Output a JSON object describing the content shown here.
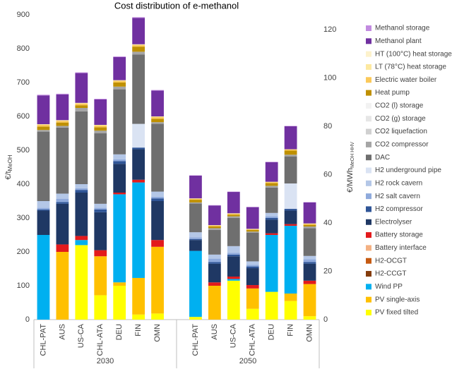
{
  "chart_data": {
    "type": "bar",
    "stacked": true,
    "title": "Cost distribution of e-methanol",
    "y_label": "€/t",
    "y_label_sub": "MeOH",
    "y2_label": "€/MWh",
    "y2_label_sub": "MeOH HHV",
    "groups": [
      "2030",
      "2050"
    ],
    "categories": [
      "CHL-PAT",
      "AUS",
      "US-CA",
      "CHL-ATA",
      "DEU",
      "FIN",
      "OMN",
      null,
      "CHL-PAT",
      "AUS",
      "US-CA",
      "CHL-ATA",
      "DEU",
      "FIN",
      "OMN"
    ],
    "ylim": [
      0,
      900
    ],
    "yticks": [
      0,
      100,
      200,
      300,
      400,
      500,
      600,
      700,
      800,
      900
    ],
    "y2lim": [
      0,
      126.1
    ],
    "y2ticks": [
      0,
      20,
      40,
      60,
      80,
      100,
      120
    ],
    "series": [
      {
        "name": "PV fixed tilted",
        "color": "#ffff00",
        "values": [
          0,
          0,
          220,
          72,
          100,
          15,
          18,
          null,
          8,
          0,
          115,
          32,
          82,
          55,
          10
        ]
      },
      {
        "name": "PV single-axis",
        "color": "#ffc000",
        "values": [
          0,
          200,
          0,
          115,
          10,
          108,
          197,
          null,
          0,
          100,
          0,
          60,
          0,
          22,
          95
        ]
      },
      {
        "name": "Wind PP",
        "color": "#00b0f0",
        "values": [
          250,
          0,
          15,
          0,
          260,
          282,
          0,
          null,
          195,
          0,
          5,
          0,
          168,
          200,
          0
        ]
      },
      {
        "name": "H2-CCGT",
        "color": "#843c0c",
        "values": [
          0,
          0,
          0,
          0,
          0,
          0,
          0,
          null,
          0,
          0,
          0,
          0,
          0,
          0,
          0
        ]
      },
      {
        "name": "H2-OCGT",
        "color": "#c55a11",
        "values": [
          0,
          0,
          0,
          0,
          0,
          0,
          0,
          null,
          0,
          0,
          0,
          0,
          0,
          0,
          0
        ]
      },
      {
        "name": "Battery interface",
        "color": "#f4b183",
        "values": [
          0,
          0,
          0,
          0,
          0,
          0,
          0,
          null,
          0,
          0,
          0,
          0,
          0,
          0,
          0
        ]
      },
      {
        "name": "Battery storage",
        "color": "#e31a1c",
        "values": [
          0,
          22,
          12,
          18,
          5,
          8,
          20,
          null,
          0,
          10,
          7,
          10,
          5,
          5,
          10
        ]
      },
      {
        "name": "Electrolyser",
        "color": "#1f3864",
        "values": [
          72,
          120,
          128,
          112,
          85,
          90,
          115,
          null,
          32,
          55,
          60,
          50,
          40,
          40,
          50
        ]
      },
      {
        "name": "H2 compressor",
        "color": "#2f5597",
        "values": [
          3,
          5,
          8,
          8,
          8,
          5,
          8,
          null,
          3,
          5,
          5,
          5,
          5,
          5,
          5
        ]
      },
      {
        "name": "H2 salt cavern",
        "color": "#8faadc",
        "values": [
          5,
          10,
          5,
          5,
          5,
          0,
          5,
          null,
          5,
          10,
          5,
          5,
          5,
          0,
          8
        ]
      },
      {
        "name": "H2 rock cavern",
        "color": "#b4c7e7",
        "values": [
          20,
          15,
          12,
          12,
          15,
          0,
          15,
          null,
          15,
          12,
          20,
          10,
          10,
          0,
          10
        ]
      },
      {
        "name": "H2 underground pipe",
        "color": "#dae3f3",
        "values": [
          0,
          0,
          0,
          0,
          0,
          70,
          0,
          null,
          0,
          0,
          0,
          0,
          0,
          75,
          0
        ]
      },
      {
        "name": "DAC",
        "color": "#6f6f6f",
        "values": [
          205,
          195,
          215,
          208,
          192,
          205,
          200,
          null,
          85,
          73,
          83,
          85,
          75,
          80,
          82
        ]
      },
      {
        "name": "CO2 compressor",
        "color": "#a5a5a5",
        "values": [
          5,
          5,
          10,
          8,
          8,
          8,
          5,
          null,
          3,
          5,
          5,
          3,
          5,
          5,
          5
        ]
      },
      {
        "name": "CO2 liquefaction",
        "color": "#d0d0d0",
        "values": [
          0,
          0,
          0,
          0,
          0,
          0,
          0,
          null,
          0,
          0,
          0,
          0,
          0,
          0,
          0
        ]
      },
      {
        "name": "CO2 (g) storage",
        "color": "#e6e6e6",
        "values": [
          0,
          0,
          0,
          0,
          0,
          0,
          0,
          null,
          0,
          0,
          0,
          0,
          0,
          0,
          0
        ]
      },
      {
        "name": "CO2 (l) storage",
        "color": "#f2f2f2",
        "values": [
          0,
          0,
          0,
          0,
          0,
          0,
          0,
          null,
          0,
          0,
          0,
          0,
          0,
          0,
          0
        ]
      },
      {
        "name": "Heat pump",
        "color": "#bf9000",
        "values": [
          10,
          10,
          8,
          10,
          12,
          15,
          10,
          null,
          8,
          5,
          5,
          5,
          8,
          12,
          5
        ]
      },
      {
        "name": "Electric water boiler",
        "color": "#fbc95a",
        "values": [
          5,
          5,
          5,
          5,
          5,
          5,
          5,
          null,
          3,
          3,
          3,
          2,
          3,
          3,
          3
        ]
      },
      {
        "name": "LT (78°C) heat storage",
        "color": "#fde9a0",
        "values": [
          2,
          2,
          2,
          2,
          2,
          2,
          2,
          null,
          1,
          1,
          1,
          1,
          1,
          1,
          1
        ]
      },
      {
        "name": "HT (100°C) heat storage",
        "color": "#fdf2cc",
        "values": [
          0,
          0,
          0,
          0,
          0,
          0,
          0,
          null,
          0,
          0,
          0,
          0,
          0,
          0,
          0
        ]
      },
      {
        "name": "Methanol plant",
        "color": "#7030a0",
        "values": [
          85,
          76,
          88,
          75,
          68,
          78,
          76,
          null,
          67,
          58,
          63,
          64,
          58,
          68,
          62
        ]
      },
      {
        "name": "Methanol storage",
        "color": "#c28be0",
        "values": [
          2,
          2,
          2,
          2,
          2,
          2,
          2,
          null,
          1,
          1,
          1,
          1,
          1,
          1,
          1
        ]
      }
    ]
  }
}
